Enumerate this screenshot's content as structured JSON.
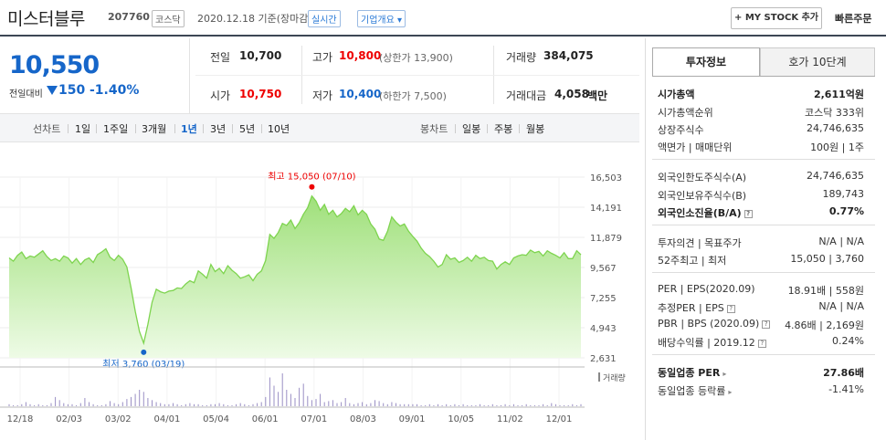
{
  "header": {
    "stock_name": "미스터블루",
    "stock_code": "207760",
    "market": "코스닥",
    "as_of": "2020.12.18 기준(장마감)",
    "realtime": "실시간",
    "overview": "기업개요 ▾",
    "mystock_button": "+ MY STOCK 추가",
    "quick_order": "빠른주문"
  },
  "quote": {
    "price": "10,550",
    "change_label": "전일대비",
    "change_amount": "150",
    "change_rate": "-1.40%",
    "prev_close_label": "전일",
    "prev_close": "10,700",
    "high_label": "고가",
    "high": "10,800",
    "upper_limit": "(상한가 13,900)",
    "volume_label": "거래량",
    "volume": "384,075",
    "open_label": "시가",
    "open": "10,750",
    "low_label": "저가",
    "low": "10,400",
    "lower_limit": "(하한가 7,500)",
    "trade_value_label": "거래대금",
    "trade_value": "4,058",
    "trade_value_unit": "백만"
  },
  "periods": {
    "line_label": "선차트",
    "line_items": [
      "1일",
      "1주일",
      "3개월",
      "1년",
      "3년",
      "5년",
      "10년"
    ],
    "selected": "1년",
    "candle_label": "봉차트",
    "candle_items": [
      "일봉",
      "주봉",
      "월봉"
    ]
  },
  "right": {
    "tab_invest": "투자정보",
    "tab_hoga": "호가 10단계",
    "rows": {
      "market_cap_label": "시가총액",
      "market_cap": "2,611억원",
      "market_cap_rank_label": "시가총액순위",
      "market_cap_rank": "코스닥 333위",
      "shares_label": "상장주식수",
      "shares": "24,746,635",
      "face_value_label": "액면가 | 매매단위",
      "face_value": "100원 | 1주",
      "foreign_limit_label": "외국인한도주식수(A)",
      "foreign_limit": "24,746,635",
      "foreign_hold_label": "외국인보유주식수(B)",
      "foreign_hold": "189,743",
      "foreign_ratio_label": "외국인소진율(B/A)",
      "foreign_ratio": "0.77%",
      "opinion_label": "투자의견 | 목표주가",
      "opinion": "N/A | N/A",
      "w52_label": "52주최고 | 최저",
      "w52": "15,050 | 3,760",
      "per_label": "PER | EPS(2020.09)",
      "per": "18.91배 | 558원",
      "est_per_label": "추정PER | EPS",
      "est_per": "N/A | N/A",
      "pbr_label": "PBR | BPS (2020.09)",
      "pbr": "4.86배 | 2,169원",
      "dividend_label": "배당수익률 | 2019.12",
      "dividend": "0.24%",
      "ind_per_label": "동일업종 PER",
      "ind_per": "27.86배",
      "ind_rate_label": "동일업종 등락률",
      "ind_rate": "-1.41%"
    }
  },
  "chart_data": {
    "type": "area",
    "y_ticks": [
      "16,503",
      "14,191",
      "11,879",
      "9,567",
      "7,255",
      "4,943",
      "2,631"
    ],
    "ylim": [
      2631,
      16503
    ],
    "x_ticks": [
      "12/18",
      "02/03",
      "03/02",
      "04/01",
      "05/04",
      "06/01",
      "07/01",
      "08/03",
      "09/01",
      "10/05",
      "11/02",
      "12/01"
    ],
    "high_annotation": "최고 15,050 (07/10)",
    "low_annotation": "최저 3,760 (03/19)",
    "volume_label": "거래량",
    "series": [
      {
        "values": [
          10300,
          10050,
          10500,
          10750,
          10250,
          10450,
          10350,
          10600,
          10850,
          10400,
          10100,
          10250,
          10050,
          10450,
          10300,
          9900,
          10250,
          9800,
          10150,
          10300,
          9950,
          10550,
          10750,
          11000,
          10350,
          10100,
          10500,
          10200,
          9600,
          8000,
          6200,
          4650,
          3760,
          5200,
          6900,
          7900,
          7700,
          7600,
          7750,
          7800,
          8000,
          7950,
          8300,
          8550,
          8400,
          9300,
          9050,
          8750,
          9800,
          9250,
          9500,
          9100,
          9700,
          9350,
          9100,
          8750,
          8850,
          9000,
          8550,
          9050,
          9300,
          10100,
          12100,
          11800,
          12250,
          12950,
          12800,
          13200,
          12550,
          13000,
          13650,
          14150,
          15050,
          14650,
          13950,
          14400,
          13650,
          13950,
          13450,
          13700,
          14100,
          13850,
          14300,
          13600,
          13950,
          13650,
          12900,
          12500,
          11750,
          11650,
          12350,
          13450,
          13050,
          12750,
          12900,
          12350,
          11950,
          11600,
          11050,
          10650,
          10400,
          10050,
          9600,
          9800,
          10550,
          10200,
          10300,
          9950,
          10100,
          10350,
          10050,
          10500,
          10250,
          10350,
          10100,
          10050,
          9450,
          9800,
          10000,
          9800,
          10300,
          10450,
          10550,
          10500,
          10900,
          10700,
          10800,
          10450,
          10850,
          10650,
          10500,
          10300,
          10700,
          10250,
          10250,
          10850,
          10550
        ]
      }
    ],
    "volume": [
      2,
      1,
      1,
      2,
      4,
      2,
      1,
      2,
      1,
      1,
      3,
      9,
      6,
      3,
      2,
      2,
      1,
      3,
      8,
      4,
      2,
      1,
      1,
      2,
      5,
      3,
      2,
      4,
      7,
      9,
      12,
      16,
      14,
      8,
      6,
      4,
      3,
      2,
      2,
      3,
      2,
      1,
      2,
      3,
      2,
      2,
      1,
      1,
      2,
      2,
      3,
      2,
      1,
      1,
      2,
      3,
      2,
      1,
      2,
      3,
      4,
      9,
      28,
      20,
      14,
      32,
      16,
      12,
      8,
      18,
      22,
      10,
      6,
      7,
      12,
      4,
      5,
      6,
      3,
      4,
      8,
      3,
      2,
      3,
      4,
      2,
      3,
      6,
      5,
      3,
      2,
      4,
      3,
      2,
      2,
      2,
      2,
      2,
      1,
      1,
      2,
      1,
      2,
      1,
      2,
      1,
      2,
      1,
      2,
      1,
      1,
      1,
      2,
      1,
      1,
      2,
      1,
      1,
      2,
      1,
      2,
      1,
      1,
      2,
      1,
      1,
      1,
      2,
      1,
      3,
      2,
      1,
      1,
      1,
      2,
      1,
      2
    ]
  }
}
